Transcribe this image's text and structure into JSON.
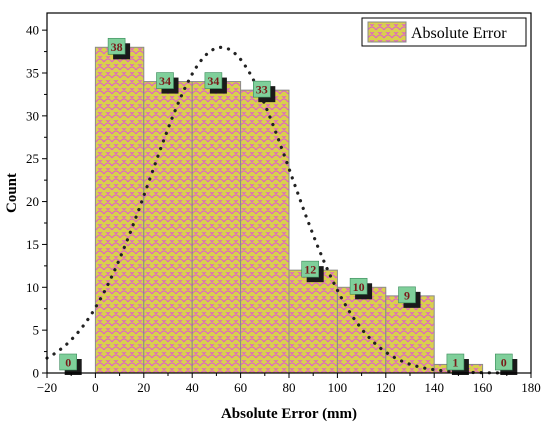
{
  "chart_data": {
    "type": "bar",
    "xlabel": "Absolute Error (mm)",
    "ylabel": "Count",
    "xlim": [
      -20,
      180
    ],
    "ylim": [
      0,
      42
    ],
    "x_ticks": [
      -20,
      0,
      20,
      40,
      60,
      80,
      100,
      120,
      140,
      160,
      180
    ],
    "y_ticks": [
      0,
      5,
      10,
      15,
      20,
      25,
      30,
      35,
      40
    ],
    "legend": {
      "label": "Absolute Error",
      "position": "top-right"
    },
    "bins": [
      {
        "x0": -20,
        "x1": 0,
        "value": 0
      },
      {
        "x0": 0,
        "x1": 20,
        "value": 38
      },
      {
        "x0": 20,
        "x1": 40,
        "value": 34
      },
      {
        "x0": 40,
        "x1": 60,
        "value": 34
      },
      {
        "x0": 60,
        "x1": 80,
        "value": 33
      },
      {
        "x0": 80,
        "x1": 100,
        "value": 12
      },
      {
        "x0": 100,
        "x1": 120,
        "value": 10
      },
      {
        "x0": 120,
        "x1": 140,
        "value": 9
      },
      {
        "x0": 140,
        "x1": 160,
        "value": 1
      },
      {
        "x0": 160,
        "x1": 180,
        "value": 0
      }
    ],
    "fit_curve": {
      "type": "normal",
      "peak": 38,
      "mean": 52,
      "sigma": 29
    },
    "grid": false
  },
  "colors": {
    "bar_fill": "#d9cf4e",
    "bar_pattern": "#e05ad0",
    "bar_stroke": "#8a8a8a",
    "label_box": "#7fcf9a",
    "label_shadow": "#1a1a1a",
    "label_text": "#7a1a1a",
    "curve": "#222222"
  },
  "labels": {
    "xlabel": "Absolute Error (mm)",
    "ylabel": "Count",
    "legend": "Absolute Error"
  }
}
